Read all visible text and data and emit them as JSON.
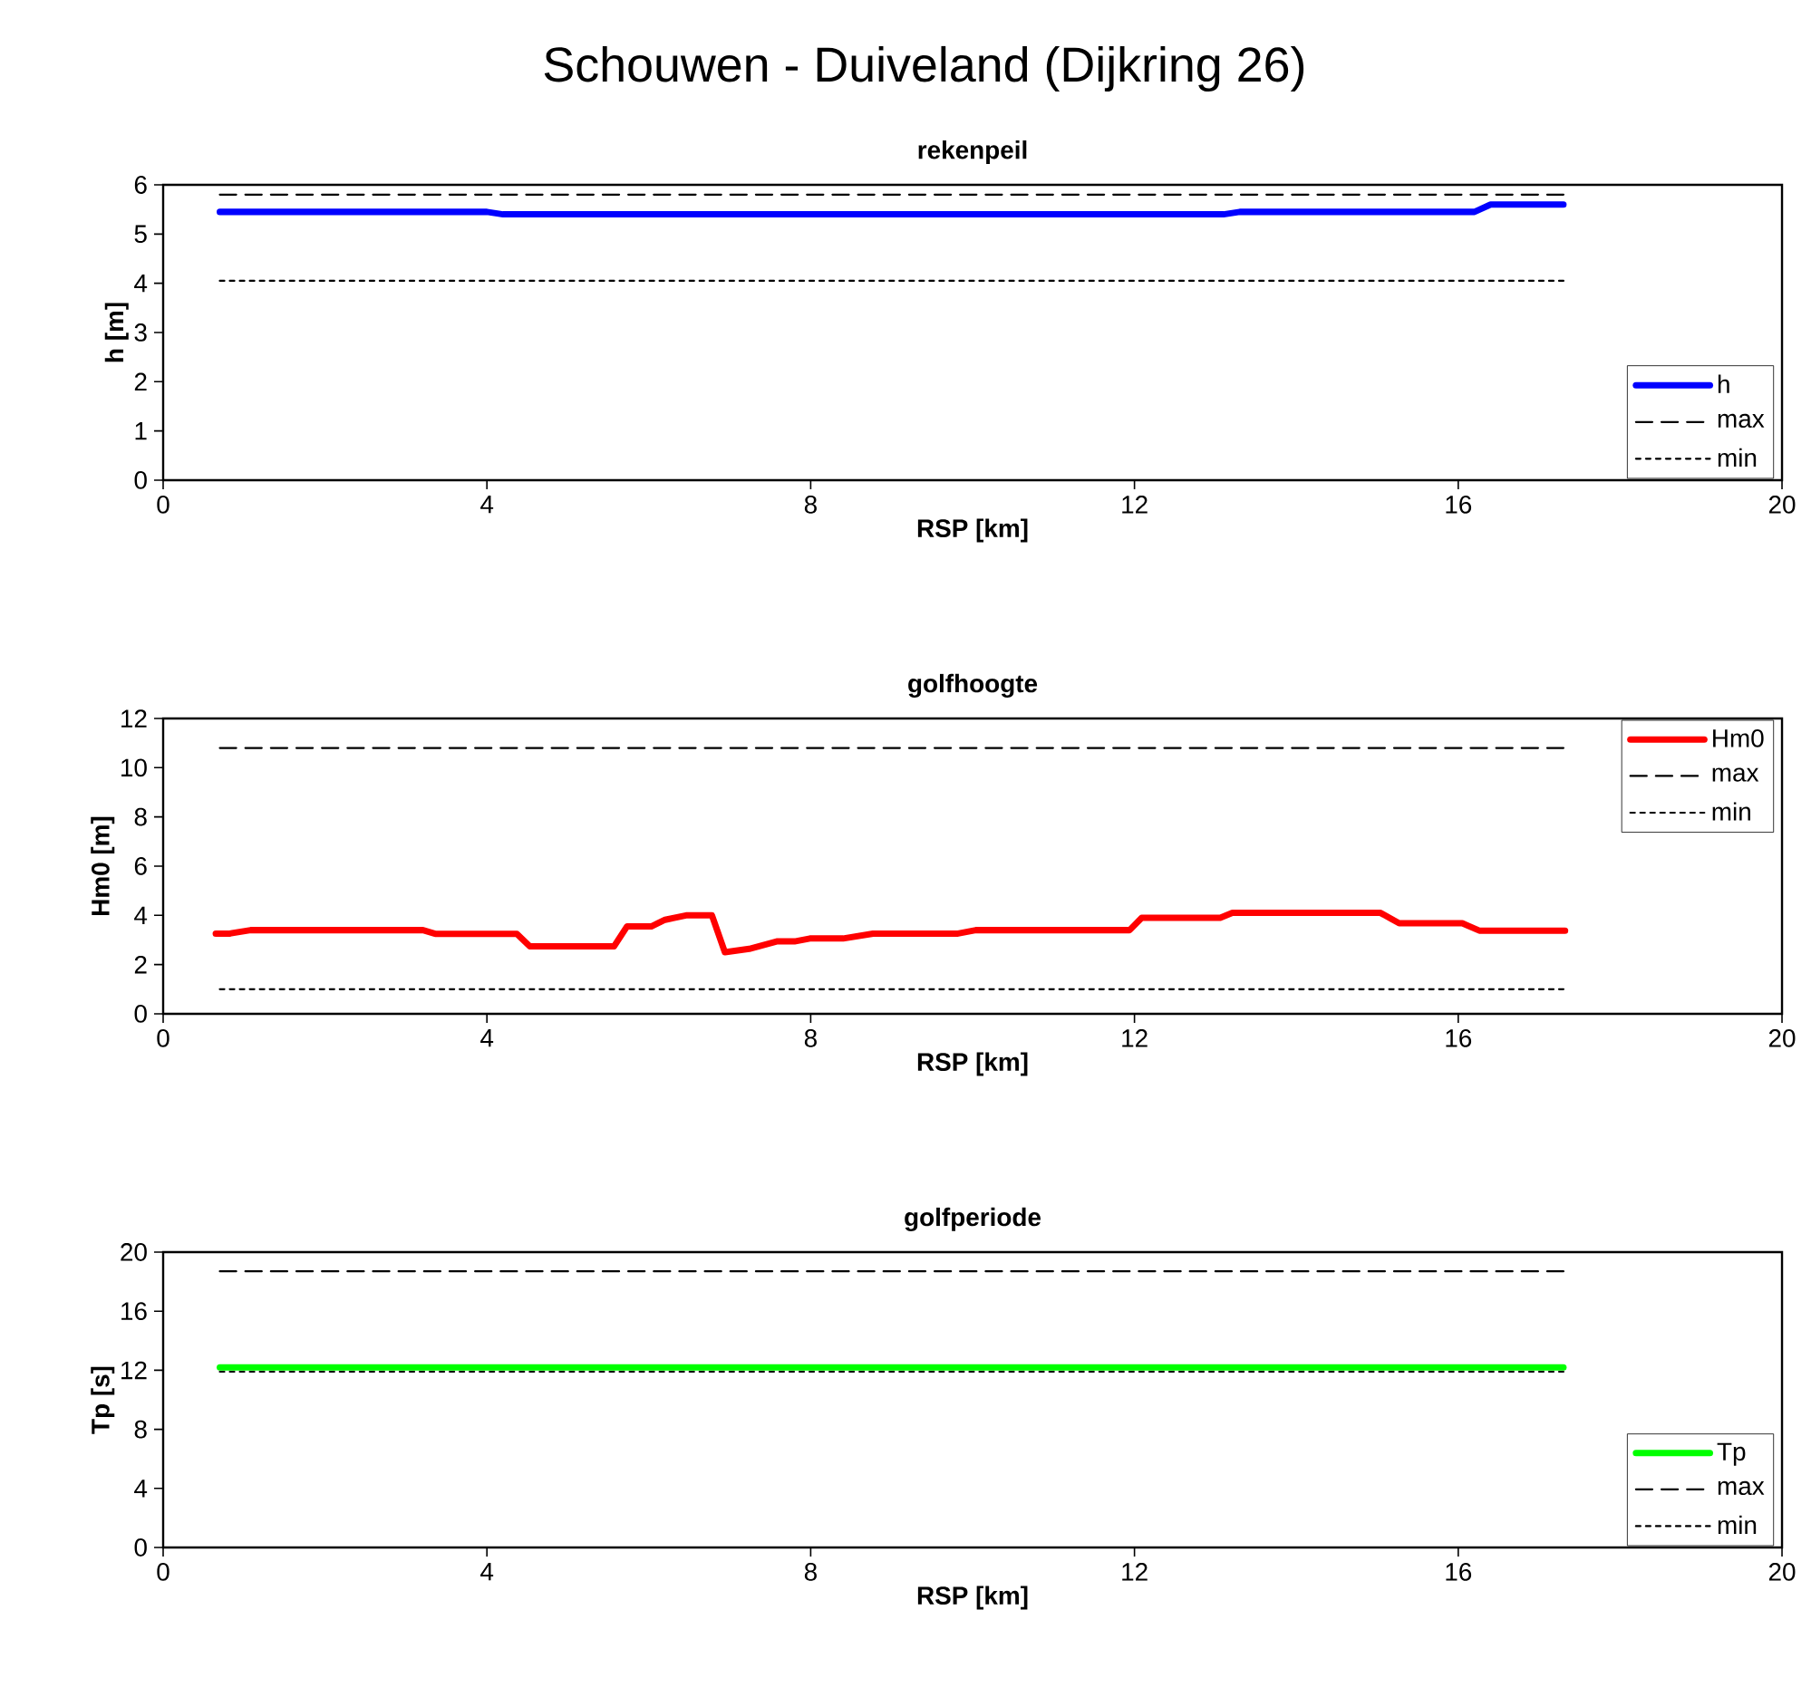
{
  "chart_data": [
    {
      "type": "line",
      "title": "Schouwen - Duiveland (Dijkring 26)",
      "subtitle": "rekenpeil",
      "xlabel": "RSP [km]",
      "ylabel": "h [m]",
      "xlim": [
        0,
        20
      ],
      "xticks": [
        0,
        4,
        8,
        12,
        16,
        20
      ],
      "ylim": [
        0,
        6
      ],
      "yticks": [
        0,
        1,
        2,
        3,
        4,
        5,
        6
      ],
      "legend": "bottom right",
      "series": [
        {
          "name": "h",
          "color": "#0000ff",
          "line_style": "solid",
          "x": [
            0.7,
            4.0,
            4.2,
            13.1,
            13.3,
            16.2,
            16.4,
            17.3
          ],
          "values": [
            5.45,
            5.45,
            5.4,
            5.4,
            5.45,
            5.45,
            5.6,
            5.6
          ]
        },
        {
          "name": "max",
          "color": "#000000",
          "line_style": "dashed",
          "x": [
            0.7,
            17.3
          ],
          "values": [
            5.8,
            5.8
          ]
        },
        {
          "name": "min",
          "color": "#000000",
          "line_style": "dotted",
          "x": [
            0.7,
            17.3
          ],
          "values": [
            4.05,
            4.05
          ]
        }
      ]
    },
    {
      "type": "line",
      "title": "golfhoogte",
      "xlabel": "RSP [km]",
      "ylabel": "Hm0 [m]",
      "xlim": [
        0,
        20
      ],
      "xticks": [
        0,
        4,
        8,
        12,
        16,
        20
      ],
      "ylim": [
        0,
        12
      ],
      "yticks": [
        0,
        2,
        4,
        6,
        8,
        10,
        12
      ],
      "legend": "top right",
      "series": [
        {
          "name": "Hm0",
          "color": "#ff0000",
          "line_style": "solid",
          "x": [
            0.65,
            0.82,
            1.08,
            3.21,
            3.36,
            4.37,
            4.53,
            5.57,
            5.73,
            6.03,
            6.2,
            6.46,
            6.78,
            6.94,
            7.24,
            7.58,
            7.8,
            7.99,
            8.4,
            8.77,
            9.82,
            10.04,
            11.94,
            12.09,
            13.06,
            13.21,
            15.04,
            15.27,
            16.05,
            16.26,
            17.32
          ],
          "values": [
            3.26,
            3.26,
            3.4,
            3.4,
            3.25,
            3.25,
            2.74,
            2.74,
            3.55,
            3.55,
            3.82,
            4.0,
            4.0,
            2.5,
            2.64,
            2.94,
            2.94,
            3.06,
            3.06,
            3.26,
            3.26,
            3.4,
            3.4,
            3.9,
            3.9,
            4.1,
            4.1,
            3.68,
            3.68,
            3.38,
            3.38
          ]
        },
        {
          "name": "max",
          "color": "#000000",
          "line_style": "dashed",
          "x": [
            0.7,
            17.3
          ],
          "values": [
            10.8,
            10.8
          ]
        },
        {
          "name": "min",
          "color": "#000000",
          "line_style": "dotted",
          "x": [
            0.7,
            17.3
          ],
          "values": [
            1.0,
            1.0
          ]
        }
      ]
    },
    {
      "type": "line",
      "title": "golfperiode",
      "xlabel": "RSP [km]",
      "ylabel": "Tp [s]",
      "xlim": [
        0,
        20
      ],
      "xticks": [
        0,
        4,
        8,
        12,
        16,
        20
      ],
      "ylim": [
        0,
        20
      ],
      "yticks": [
        0,
        4,
        8,
        12,
        16,
        20
      ],
      "legend": "bottom right",
      "series": [
        {
          "name": "Tp",
          "color": "#00ff00",
          "line_style": "solid",
          "x": [
            0.7,
            17.3
          ],
          "values": [
            12.2,
            12.2
          ]
        },
        {
          "name": "max",
          "color": "#000000",
          "line_style": "dashed",
          "x": [
            0.7,
            17.3
          ],
          "values": [
            18.7,
            18.7
          ]
        },
        {
          "name": "min",
          "color": "#000000",
          "line_style": "dotted",
          "x": [
            0.7,
            17.3
          ],
          "values": [
            11.9,
            11.9
          ]
        }
      ]
    }
  ]
}
